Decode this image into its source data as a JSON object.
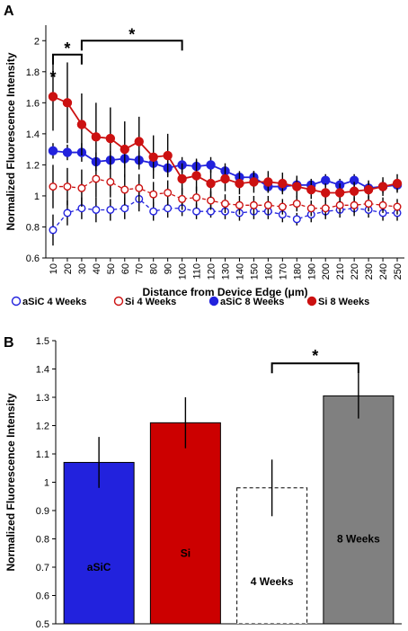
{
  "panels": {
    "a": "A",
    "b": "B"
  },
  "chart_data": [
    {
      "type": "line",
      "ylabel": "Normalized Fluorescence Intensity",
      "xlabel": "Distance from Device Edge (μm)",
      "ylim": [
        0.6,
        2.1
      ],
      "yticks": [
        "0.6",
        "0.8",
        "1",
        "1.2",
        "1.4",
        "1.6",
        "1.8",
        "2"
      ],
      "x": [
        10,
        20,
        30,
        40,
        50,
        60,
        70,
        80,
        90,
        100,
        110,
        120,
        130,
        140,
        150,
        160,
        170,
        180,
        190,
        200,
        210,
        220,
        230,
        240,
        250
      ],
      "legend_position": "bottom",
      "series": [
        {
          "name": "aSiC 4 Weeks",
          "color": "#2222dd",
          "marker": "open",
          "line": "dashed",
          "values": [
            0.78,
            0.89,
            0.92,
            0.91,
            0.91,
            0.92,
            0.98,
            0.9,
            0.92,
            0.92,
            0.9,
            0.9,
            0.9,
            0.89,
            0.9,
            0.9,
            0.88,
            0.85,
            0.88,
            0.9,
            0.91,
            0.92,
            0.91,
            0.89,
            0.89
          ],
          "errors": [
            0.1,
            0.08,
            0.07,
            0.08,
            0.07,
            0.07,
            0.08,
            0.06,
            0.06,
            0.05,
            0.05,
            0.04,
            0.05,
            0.05,
            0.05,
            0.05,
            0.05,
            0.04,
            0.05,
            0.05,
            0.05,
            0.05,
            0.05,
            0.05,
            0.05
          ]
        },
        {
          "name": "Si 4 Weeks",
          "color": "#cc1111",
          "marker": "open",
          "line": "dashed",
          "values": [
            1.06,
            1.06,
            1.05,
            1.11,
            1.09,
            1.04,
            1.05,
            1.01,
            1.02,
            0.98,
            0.99,
            0.97,
            0.95,
            0.94,
            0.94,
            0.94,
            0.93,
            0.95,
            0.92,
            0.92,
            0.94,
            0.94,
            0.95,
            0.94,
            0.93
          ],
          "errors": [
            0.14,
            0.12,
            0.12,
            0.12,
            0.1,
            0.1,
            0.09,
            0.08,
            0.08,
            0.07,
            0.07,
            0.06,
            0.06,
            0.06,
            0.06,
            0.06,
            0.05,
            0.05,
            0.05,
            0.05,
            0.05,
            0.05,
            0.05,
            0.05,
            0.05
          ]
        },
        {
          "name": "aSiC 8 Weeks",
          "color": "#2222dd",
          "marker": "filled",
          "line": "solid",
          "values": [
            1.29,
            1.28,
            1.28,
            1.22,
            1.23,
            1.24,
            1.23,
            1.21,
            1.18,
            1.2,
            1.19,
            1.2,
            1.16,
            1.12,
            1.12,
            1.06,
            1.06,
            1.07,
            1.07,
            1.1,
            1.07,
            1.1,
            1.05,
            1.06,
            1.07
          ],
          "errors": [
            0.05,
            0.05,
            0.06,
            0.06,
            0.06,
            0.06,
            0.06,
            0.05,
            0.05,
            0.05,
            0.05,
            0.05,
            0.05,
            0.04,
            0.04,
            0.04,
            0.04,
            0.04,
            0.04,
            0.04,
            0.04,
            0.04,
            0.04,
            0.04,
            0.04
          ]
        },
        {
          "name": "Si 8 Weeks",
          "color": "#cc1111",
          "marker": "filled",
          "line": "solid",
          "values": [
            1.64,
            1.6,
            1.46,
            1.38,
            1.37,
            1.3,
            1.35,
            1.25,
            1.26,
            1.11,
            1.13,
            1.08,
            1.11,
            1.08,
            1.09,
            1.09,
            1.08,
            1.06,
            1.04,
            1.02,
            1.02,
            1.03,
            1.04,
            1.06,
            1.08
          ],
          "errors": [
            0.22,
            0.26,
            0.2,
            0.22,
            0.2,
            0.18,
            0.16,
            0.14,
            0.14,
            0.1,
            0.1,
            0.09,
            0.08,
            0.07,
            0.07,
            0.07,
            0.07,
            0.07,
            0.06,
            0.06,
            0.06,
            0.06,
            0.06,
            0.06,
            0.06
          ]
        }
      ],
      "annotations": [
        {
          "text": "*",
          "from": 10,
          "to": 10,
          "level": 1.8
        },
        {
          "text": "*",
          "from": 10,
          "to": 30,
          "level": 1.91
        },
        {
          "text": "*",
          "from": 30,
          "to": 100,
          "level": 2.0
        }
      ]
    },
    {
      "type": "bar",
      "ylabel": "Normalized Fluorescence Intensity",
      "ylim": [
        0.5,
        1.5
      ],
      "yticks": [
        "0.5",
        "0.6",
        "0.7",
        "0.8",
        "0.9",
        "1",
        "1.1",
        "1.2",
        "1.3",
        "1.4",
        "1.5"
      ],
      "categories": [
        "aSiC",
        "Si",
        "4 Weeks",
        "8 Weeks"
      ],
      "values": [
        1.07,
        1.21,
        0.98,
        1.305
      ],
      "errors": [
        0.09,
        0.09,
        0.1,
        0.08
      ],
      "colors": [
        "#2222dd",
        "#cc0000",
        "#ffffff",
        "#808080"
      ],
      "label_colors": [
        "#000000",
        "#000000",
        "#000000",
        "#000000"
      ],
      "label_levels": [
        0.7,
        0.75,
        0.65,
        0.8
      ],
      "dashed": [
        false,
        false,
        true,
        false
      ],
      "annotations": [
        {
          "text": "*",
          "from": 2,
          "to": 3,
          "level": 1.42
        }
      ]
    }
  ]
}
